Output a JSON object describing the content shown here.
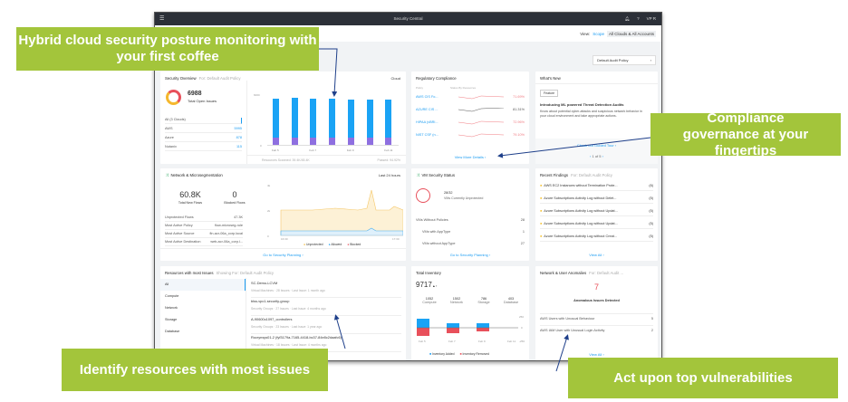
{
  "app": {
    "title": "Security Central",
    "user": "VP R",
    "view_label": "View:",
    "scope_label": "Scope",
    "scope_value": "All Clouds & All Accounts",
    "policy": "Default Audit Policy"
  },
  "callouts": [
    "Hybrid cloud security posture monitoring with your first coffee",
    "Compliance governance at your fingertips",
    "Identify resources with most issues",
    "Act upon top vulnerabilities"
  ],
  "security_overview": {
    "title": "Security Overview",
    "subtitle": "For: Default Audit Policy",
    "filter": "Cloud",
    "total": "6988",
    "total_label": "Total Open Issues",
    "clouds": [
      {
        "name": "All (3 Clouds)",
        "value": ""
      },
      {
        "name": "AWS",
        "value": "5995"
      },
      {
        "name": "Azure",
        "value": "878"
      },
      {
        "name": "Nutanix",
        "value": "115"
      }
    ],
    "y_max_label": "6000",
    "y_min_label": "0",
    "scanned": "Resources Scanned: 39.4K/45.4K",
    "passed": "Passed: 94.92%",
    "chart_data": {
      "type": "bar",
      "categories": [
        "Feb 5",
        "Feb 6",
        "Feb 7",
        "Feb 8",
        "Feb 9",
        "Feb 10",
        "Feb 11"
      ],
      "tick_labels": [
        "Feb 5",
        "Feb 7",
        "Feb 9",
        "Feb 11"
      ],
      "ylim": [
        0,
        6000
      ],
      "series": [
        {
          "values": [
            900,
            900,
            900,
            900,
            900,
            900,
            900
          ],
          "color": "#8e6fe0"
        },
        {
          "values": [
            4600,
            4650,
            4600,
            4550,
            4500,
            4500,
            4450
          ],
          "color": "#1aa3f5"
        }
      ]
    }
  },
  "compliance": {
    "title": "Regulatory Compliance",
    "col1": "Policy",
    "col2": "Status By Resources",
    "rows": [
      {
        "name": "AWS CIS Fo...",
        "value": "71.69%",
        "color": "#f07c82"
      },
      {
        "name": "AZURE CIS ...",
        "value": "81.31%",
        "color": "#555"
      },
      {
        "name": "HIPAA (vBRI...",
        "value": "72.96%",
        "color": "#f07c82"
      },
      {
        "name": "NIST CSF (n...",
        "value": "79.10%",
        "color": "#f07c82"
      }
    ],
    "link": "View More Details"
  },
  "whats_new": {
    "title": "What's New",
    "tag": "Feature",
    "headline": "Introducing ML powered Threat Detection Audits",
    "body": "Know about potential cyber-attacks and suspicious network behavior in your cloud environment and take appropriate actions.",
    "link": "Check out Guided Tour",
    "pager": "1 of 5"
  },
  "network": {
    "title": "Network & Microsegmentation",
    "filter": "Last 24 hours",
    "flows": "60.8K",
    "flows_label": "Total New Flows",
    "blocked": "0",
    "blocked_label": "Blocked Flows",
    "rows": [
      {
        "k": "Unprotected Flows",
        "v": "47.3K"
      },
      {
        "k": "Most Active Policy",
        "v": "flow-microseg-rule"
      },
      {
        "k": "Most Active Source",
        "v": "fin-acr-06a_corp.local"
      },
      {
        "k": "Most Active Destination",
        "v": "web-acr-06a_corp.l..."
      }
    ],
    "y_labels": [
      "4k",
      "2k",
      "0"
    ],
    "x_labels": [
      "16:30",
      "17:30"
    ],
    "legend": [
      "Unprotected",
      "Allowed",
      "Blocked"
    ],
    "link": "Go to Security Planning"
  },
  "vm": {
    "title": "VM Security Status",
    "ratio": "28/32",
    "ratio_label": "VMs Currently Unprotected",
    "rows": [
      {
        "k": "VMs Without Policies",
        "v": "28"
      },
      {
        "k": "VMs with AppType",
        "v": "1"
      },
      {
        "k": "VMs without AppType",
        "v": "27"
      }
    ],
    "link": "Go to Security Planning"
  },
  "findings": {
    "title": "Recent Findings",
    "subtitle": "For: Default Audit Policy",
    "items": [
      {
        "t": "AWS EC2 Instances without Termination Prote...",
        "c": "(6)"
      },
      {
        "t": "Azure Subscriptions Activity Log without Delet...",
        "c": "(5)"
      },
      {
        "t": "Azure Subscriptions Activity Log without Updat...",
        "c": "(5)"
      },
      {
        "t": "Azure Subscriptions Activity Log without Updat...",
        "c": "(5)"
      },
      {
        "t": "Azure Subscriptions Activity Log without Creat...",
        "c": "(5)"
      }
    ],
    "link": "View All"
  },
  "resources": {
    "title": "Resources with most Issues",
    "subtitle": "Showing For: Default Audit Policy",
    "categories": [
      "All",
      "Compute",
      "Network",
      "Storage",
      "Database"
    ],
    "items": [
      {
        "name": "SC-Demo-LCVM",
        "meta": "Virtual Machines  ·  28 Issues  ·  Last Issue: 1 month ago"
      },
      {
        "name": "blss-vpc1-security-group",
        "meta": "Security Groups  ·  27 Issues  ·  Last Issue: 4 months ago"
      },
      {
        "name": "A-90600c1097_controllers",
        "meta": "Security Groups  ·  23 Issues  ·  Last Issue: 1 year ago"
      },
      {
        "name": "Rocrynsys01-2 (fyf3179a-7165-4418-bc37-84e8c2daafc6)",
        "meta": "Virtual Machines  ·  18 Issues  ·  Last Issue: 4 months ago"
      }
    ]
  },
  "inventory": {
    "title": "Total Inventory",
    "total": "9717",
    "stats": [
      {
        "v": "1052",
        "k": "Compute"
      },
      {
        "v": "1502",
        "k": "Network"
      },
      {
        "v": "786",
        "k": "Storage"
      },
      {
        "v": "403",
        "k": "Database"
      }
    ],
    "y_labels": [
      "250",
      "0",
      "-250"
    ],
    "x_labels": [
      "Feb 5",
      "Feb 7",
      "Feb 9",
      "Feb 11"
    ],
    "legend": [
      "Inventory Added",
      "Inventory Removed"
    ]
  },
  "anomalies": {
    "title": "Network & User Anomalies",
    "subtitle": "For: Default Audit ...",
    "count": "7",
    "count_label": "Anomalous Issues Detected",
    "rows": [
      {
        "k": "AWS Users with Unusual Behaviour",
        "v": "5"
      },
      {
        "k": "AWS IAM User with Unusual Login Activity",
        "v": "2"
      }
    ],
    "link": "View All"
  }
}
